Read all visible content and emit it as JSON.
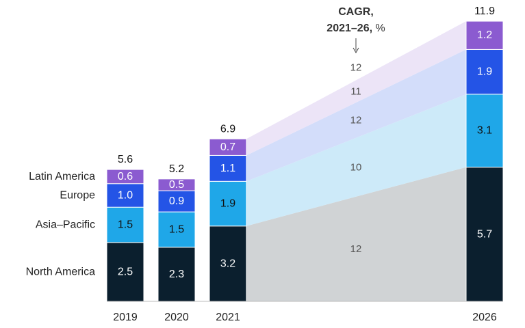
{
  "chart_data": {
    "type": "bar",
    "categories": [
      "2019",
      "2020",
      "2021",
      "2026"
    ],
    "series": [
      {
        "name": "North America",
        "values": [
          2.5,
          2.3,
          3.2,
          5.7
        ],
        "color": "#0b1f2e",
        "text_color": "#ffffff",
        "band_color": "#d0d3d5",
        "cagr": "12"
      },
      {
        "name": "Asia–Pacific",
        "values": [
          1.5,
          1.5,
          1.9,
          3.1
        ],
        "color": "#1fa7e8",
        "text_color": "#111111",
        "band_color": "#cdeaf9",
        "cagr": "10"
      },
      {
        "name": "Europe",
        "values": [
          1.0,
          0.9,
          1.1,
          1.9
        ],
        "color": "#2454e6",
        "text_color": "#ffffff",
        "band_color": "#d3ddfa",
        "cagr": "12"
      },
      {
        "name": "Latin America",
        "values": [
          0.6,
          0.5,
          0.7,
          1.2
        ],
        "color": "#8b5bd0",
        "text_color": "#ffffff",
        "band_color": "#ece4f7",
        "cagr": "11"
      }
    ],
    "totals": [
      "5.6",
      "5.2",
      "6.9",
      "11.9"
    ],
    "total_cagr": "12",
    "cagr_title_line1": "CAGR,",
    "cagr_title_line2_bold": "2021–26,",
    "cagr_title_line2_unit": " %"
  }
}
